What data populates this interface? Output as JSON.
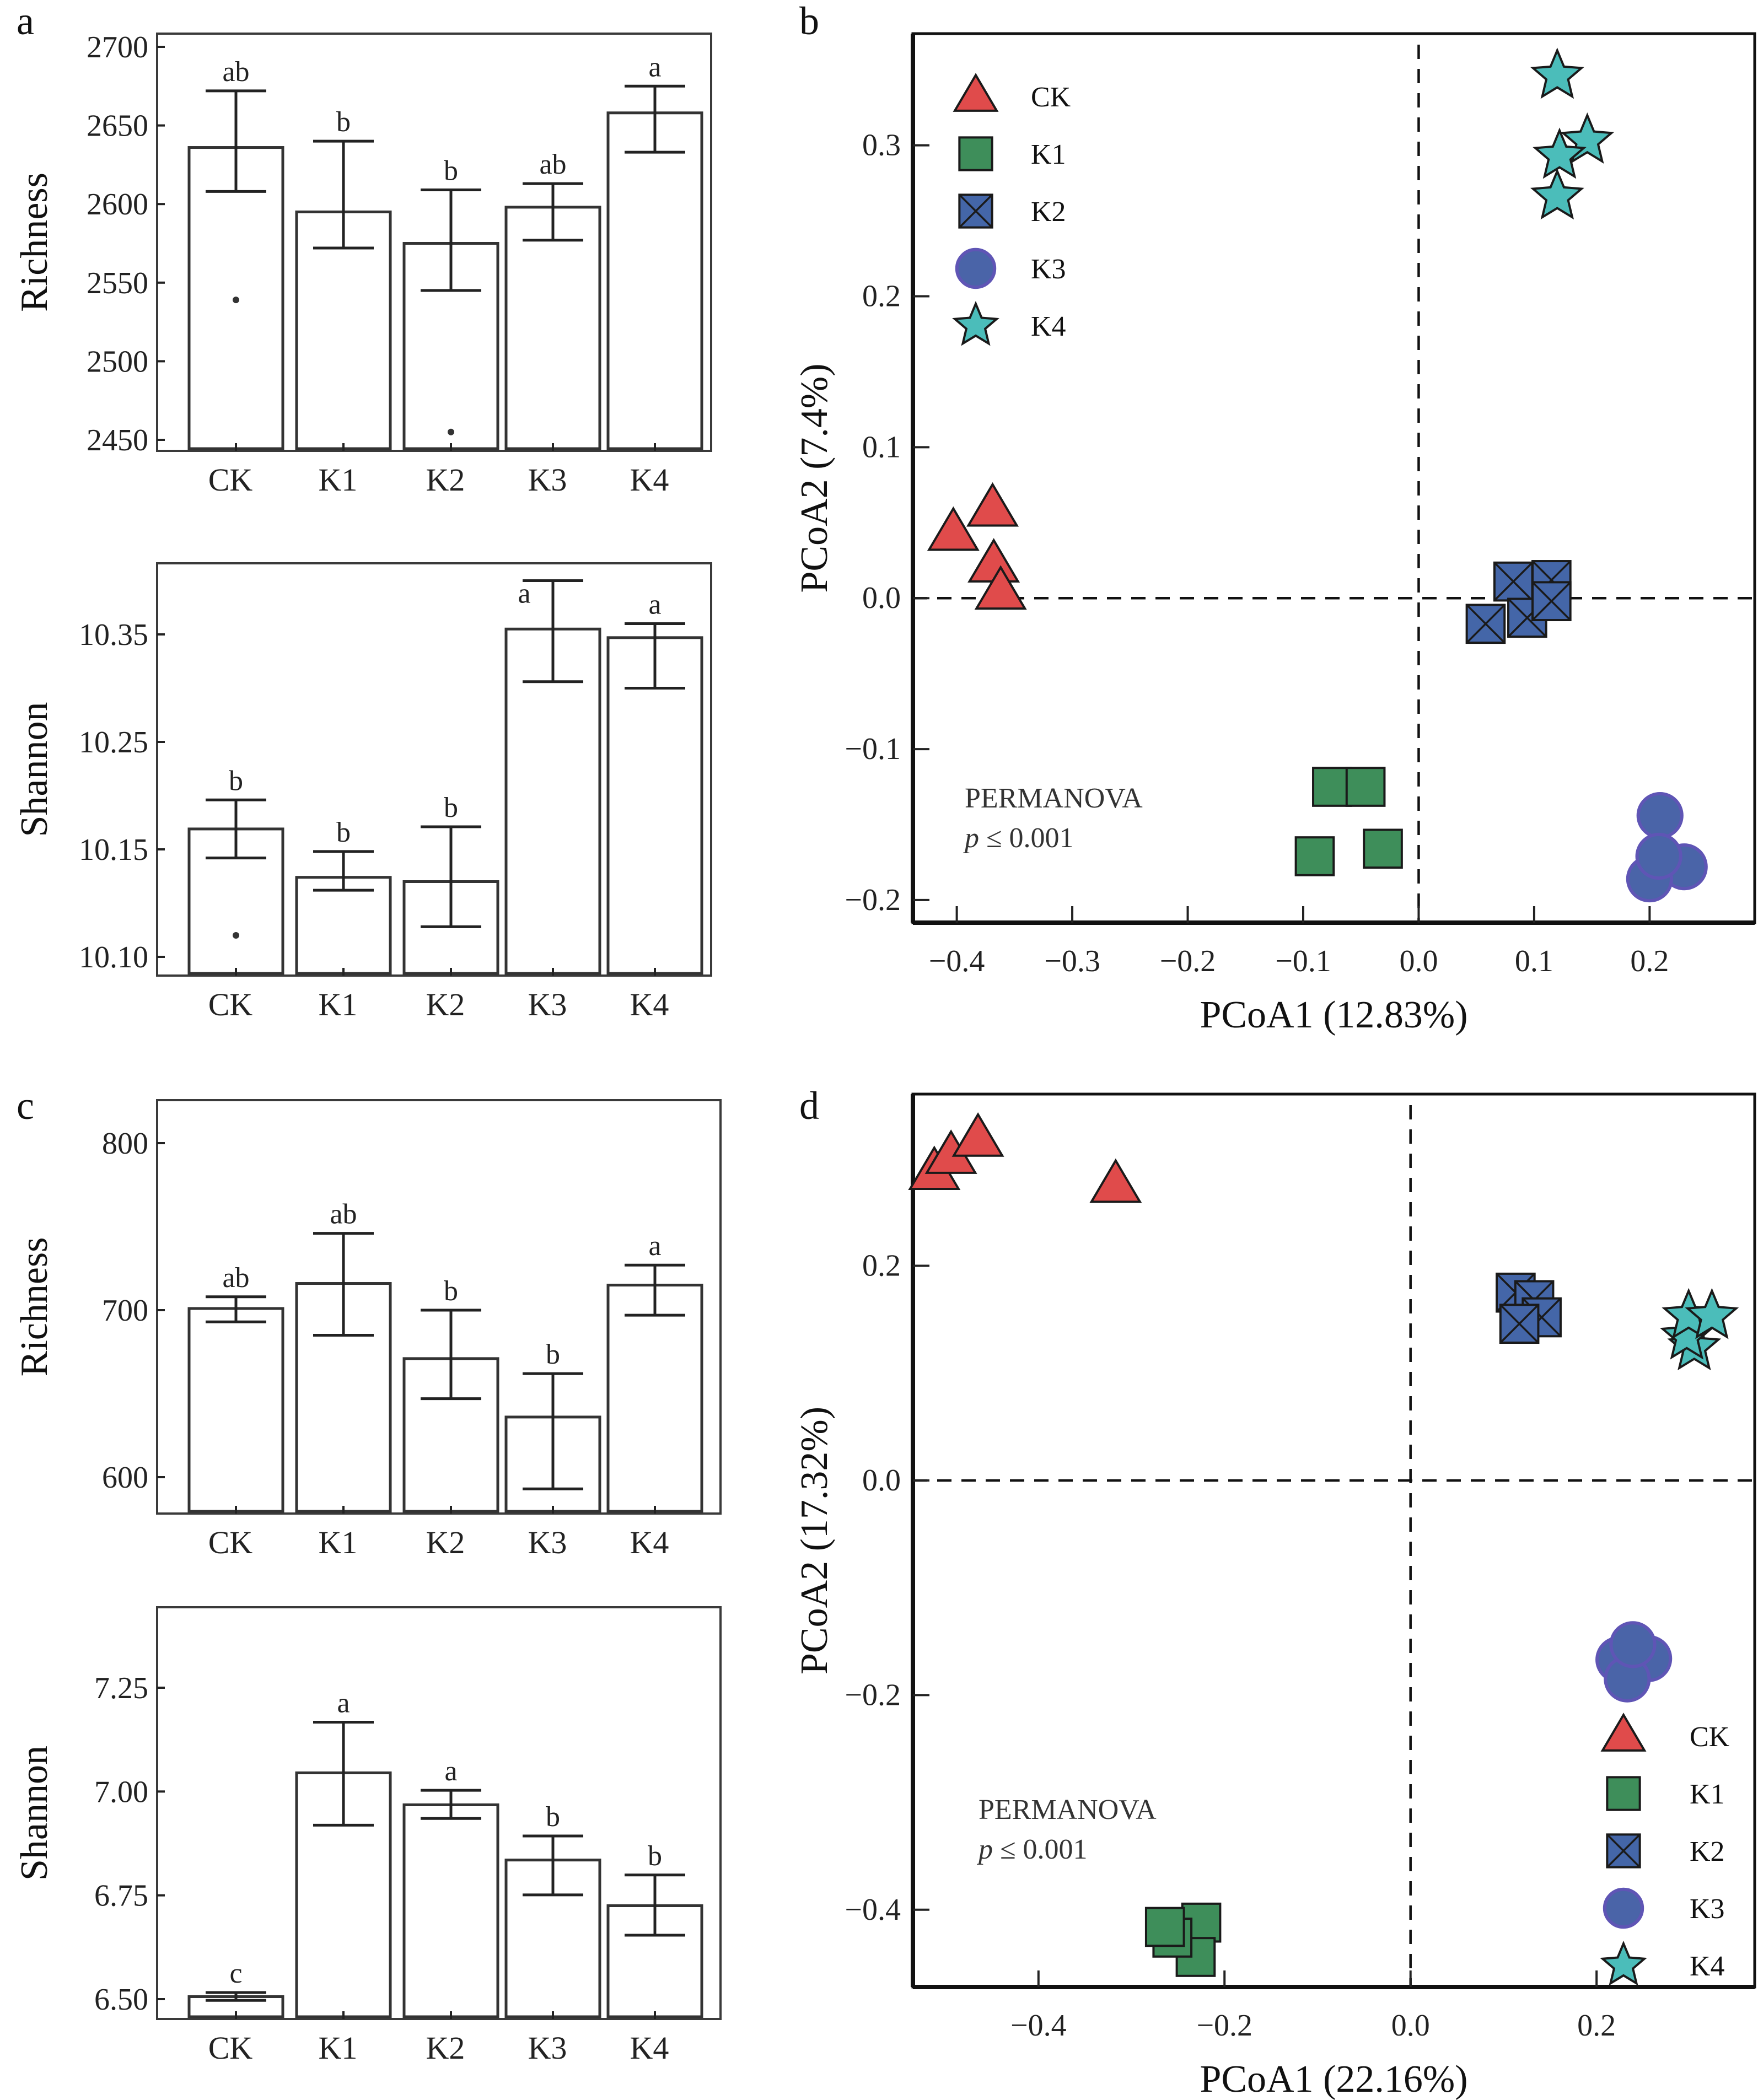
{
  "colors": {
    "CK": "#E04B4B",
    "K1": "#3E8E5A",
    "K2": "#4466A8",
    "K3": "#4A64A8",
    "K3_edge": "#5F55B5",
    "K4": "#4BBDBA"
  },
  "chart_data": [
    {
      "id": "a-richness",
      "panel": "a",
      "type": "bar",
      "title": "",
      "xlabel": "",
      "ylabel": "Richness",
      "categories": [
        "CK",
        "K1",
        "K2",
        "K3",
        "K4"
      ],
      "values": [
        2636,
        2595,
        2575,
        2598,
        2658
      ],
      "error_high": [
        2672,
        2640,
        2609,
        2613,
        2675
      ],
      "error_low": [
        2608,
        2572,
        2545,
        2577,
        2633
      ],
      "significance": [
        "ab",
        "b",
        "b",
        "ab",
        "a"
      ],
      "outliers": [
        {
          "category": "CK",
          "value": 2539
        },
        {
          "category": "K2",
          "value": 2455
        }
      ],
      "ylim": [
        2446,
        2710
      ],
      "yticks": [
        2450,
        2500,
        2550,
        2600,
        2650,
        2700
      ],
      "ytick_labels": [
        "2450",
        "2500",
        "2550",
        "2600",
        "2650",
        "2700"
      ],
      "grid": false
    },
    {
      "id": "a-shannon",
      "panel": "a",
      "type": "bar",
      "title": "",
      "xlabel": "",
      "ylabel": "Shannon",
      "categories": [
        "CK",
        "K1",
        "K2",
        "K3",
        "K4"
      ],
      "values": [
        10.169,
        10.137,
        10.135,
        10.355,
        10.347
      ],
      "error_high": [
        10.196,
        10.149,
        10.171,
        10.4,
        10.36
      ],
      "error_low": [
        10.146,
        10.131,
        10.114,
        10.306,
        10.3
      ],
      "significance": [
        "b",
        "b",
        "b",
        "a",
        "a"
      ],
      "outliers": [
        {
          "category": "CK",
          "value": 10.11
        }
      ],
      "yticks": [
        10.1,
        10.15,
        10.25,
        10.35
      ],
      "ytick_labels": [
        "10.10",
        "10.15",
        "10.25",
        "10.35"
      ],
      "axis_note": "tick labels unevenly spaced in value but evenly spaced on axis",
      "grid": false
    },
    {
      "id": "b-pcoa",
      "panel": "b",
      "type": "scatter",
      "title": "",
      "xlabel": "PCoA1 (12.83%)",
      "ylabel": "PCoA2 (7.4%)",
      "xlim": [
        -0.438,
        0.291
      ],
      "ylim": [
        -0.215,
        0.374
      ],
      "xticks": [
        -0.4,
        -0.3,
        -0.2,
        -0.1,
        0.0,
        0.1,
        0.2
      ],
      "xtick_labels": [
        "−0.4",
        "−0.3",
        "−0.2",
        "−0.1",
        "0.0",
        "0.1",
        "0.2"
      ],
      "yticks": [
        -0.2,
        -0.1,
        0.0,
        0.1,
        0.2,
        0.3
      ],
      "ytick_labels": [
        "−0.2",
        "−0.1",
        "0.0",
        "0.1",
        "0.2",
        "0.3"
      ],
      "reference_lines": {
        "x": 0,
        "y": 0,
        "style": "dashed"
      },
      "legend_position": "top-left",
      "annotation": {
        "line1": "PERMANOVA",
        "p_symbol": "p",
        "line2": "≤ 0.001"
      },
      "series": [
        {
          "name": "CK",
          "marker": "triangle",
          "points": [
            [
              -0.403,
              0.043
            ],
            [
              -0.369,
              0.059
            ],
            [
              -0.368,
              0.022
            ],
            [
              -0.362,
              0.004
            ]
          ]
        },
        {
          "name": "K1",
          "marker": "square",
          "points": [
            [
              -0.075,
              -0.125
            ],
            [
              -0.046,
              -0.125
            ],
            [
              -0.09,
              -0.171
            ],
            [
              -0.031,
              -0.166
            ]
          ]
        },
        {
          "name": "K2",
          "marker": "square-x",
          "points": [
            [
              0.115,
              0.012
            ],
            [
              0.082,
              0.011
            ],
            [
              0.094,
              -0.013
            ],
            [
              0.115,
              -0.002
            ],
            [
              0.058,
              -0.017
            ]
          ]
        },
        {
          "name": "K3",
          "marker": "circle",
          "points": [
            [
              0.209,
              -0.144
            ],
            [
              0.23,
              -0.178
            ],
            [
              0.2,
              -0.186
            ],
            [
              0.208,
              -0.171
            ]
          ]
        },
        {
          "name": "K4",
          "marker": "star",
          "points": [
            [
              0.12,
              0.346
            ],
            [
              0.146,
              0.303
            ],
            [
              0.122,
              0.293
            ],
            [
              0.12,
              0.266
            ]
          ]
        }
      ]
    },
    {
      "id": "c-richness",
      "panel": "c",
      "type": "bar",
      "title": "",
      "xlabel": "",
      "ylabel": "Richness",
      "categories": [
        "CK",
        "K1",
        "K2",
        "K3",
        "K4"
      ],
      "values": [
        701,
        716,
        671,
        636,
        715
      ],
      "error_high": [
        708,
        746,
        700,
        662,
        727
      ],
      "error_low": [
        693,
        685,
        647,
        593,
        697
      ],
      "significance": [
        "ab",
        "ab",
        "b",
        "b",
        "a"
      ],
      "ylim": [
        580,
        826
      ],
      "yticks": [
        600,
        700,
        800
      ],
      "ytick_labels": [
        "600",
        "700",
        "800"
      ],
      "grid": false
    },
    {
      "id": "c-shannon",
      "panel": "c",
      "type": "bar",
      "title": "",
      "xlabel": "",
      "ylabel": "Shannon",
      "categories": [
        "CK",
        "K1",
        "K2",
        "K3",
        "K4"
      ],
      "values": [
        6.506,
        7.045,
        6.968,
        6.835,
        6.725
      ],
      "error_high": [
        6.516,
        7.167,
        7.003,
        6.893,
        6.799
      ],
      "error_low": [
        6.497,
        6.919,
        6.935,
        6.751,
        6.654
      ],
      "significance": [
        "c",
        "a",
        "a",
        "b",
        "b"
      ],
      "ylim": [
        6.455,
        7.455
      ],
      "yticks": [
        6.5,
        6.75,
        7.0,
        7.25
      ],
      "ytick_labels": [
        "6.50",
        "6.75",
        "7.00",
        "7.25"
      ],
      "grid": false
    },
    {
      "id": "d-pcoa",
      "panel": "d",
      "type": "scatter",
      "title": "",
      "xlabel": "PCoA1 (22.16%)",
      "ylabel": "PCoA2 (17.32%)",
      "xlim": [
        -0.535,
        0.37
      ],
      "ylim": [
        -0.472,
        0.36
      ],
      "xticks": [
        -0.4,
        -0.2,
        0.0,
        0.2
      ],
      "xtick_labels": [
        "−0.4",
        "−0.2",
        "0.0",
        "0.2"
      ],
      "yticks": [
        -0.4,
        -0.2,
        0.0,
        0.2
      ],
      "ytick_labels": [
        "−0.4",
        "−0.2",
        "0.0",
        "0.2"
      ],
      "reference_lines": {
        "x": 0,
        "y": 0,
        "style": "dashed"
      },
      "legend_position": "bottom-right",
      "annotation": {
        "line1": "PERMANOVA",
        "p_symbol": "p",
        "line2": "≤ 0.001"
      },
      "series": [
        {
          "name": "CK",
          "marker": "triangle",
          "points": [
            [
              -0.512,
              0.287
            ],
            [
              -0.494,
              0.302
            ],
            [
              -0.465,
              0.318
            ],
            [
              -0.317,
              0.275
            ]
          ]
        },
        {
          "name": "K1",
          "marker": "square",
          "points": [
            [
              -0.225,
              -0.412
            ],
            [
              -0.231,
              -0.444
            ],
            [
              -0.256,
              -0.426
            ],
            [
              -0.264,
              -0.416
            ]
          ]
        },
        {
          "name": "K2",
          "marker": "square-x",
          "points": [
            [
              0.113,
              0.175
            ],
            [
              0.133,
              0.168
            ],
            [
              0.141,
              0.152
            ],
            [
              0.117,
              0.146
            ]
          ]
        },
        {
          "name": "K3",
          "marker": "circle",
          "points": [
            [
              0.224,
              -0.167
            ],
            [
              0.256,
              -0.166
            ],
            [
              0.233,
              -0.185
            ],
            [
              0.239,
              -0.153
            ]
          ]
        },
        {
          "name": "K4",
          "marker": "star",
          "points": [
            [
              0.305,
              0.124
            ],
            [
              0.297,
              0.134
            ],
            [
              0.299,
              0.153
            ],
            [
              0.324,
              0.153
            ]
          ]
        }
      ]
    }
  ],
  "panels": {
    "a": {
      "letter": "a"
    },
    "b": {
      "letter": "b"
    },
    "c": {
      "letter": "c"
    },
    "d": {
      "letter": "d"
    }
  }
}
